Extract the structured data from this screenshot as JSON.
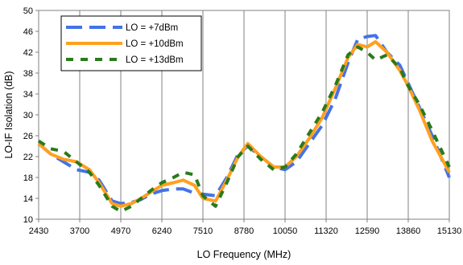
{
  "chart_data": {
    "type": "line",
    "xlabel": "LO Frequency (MHz)",
    "ylabel": "LO-IF Isolation (dB)",
    "xlim": [
      2430,
      15130
    ],
    "ylim": [
      10,
      50
    ],
    "x_ticks": [
      2430,
      3700,
      4970,
      6240,
      7510,
      8780,
      10050,
      11320,
      12590,
      13860,
      15130
    ],
    "y_ticks": [
      10,
      14,
      18,
      22,
      26,
      30,
      34,
      38,
      42,
      46,
      50
    ],
    "grid": "vertical",
    "legend_position": "top-left",
    "series": [
      {
        "name": "LO = +7dBm",
        "color": "#4472e8",
        "dash": "long-dash",
        "x": [
          2430,
          2800,
          3200,
          3600,
          4000,
          4300,
          4700,
          4970,
          5300,
          5600,
          5900,
          6240,
          6600,
          6900,
          7250,
          7510,
          7900,
          8250,
          8600,
          8900,
          9300,
          9700,
          10050,
          10400,
          10800,
          11200,
          11600,
          12000,
          12300,
          12590,
          12850,
          13200,
          13600,
          13860,
          14200,
          14600,
          15130
        ],
        "values": [
          24.5,
          22.5,
          21,
          19.5,
          19,
          17.5,
          13.5,
          13,
          13.2,
          13.8,
          14.8,
          15.5,
          15.8,
          15.8,
          15,
          14.8,
          14.5,
          18,
          22.5,
          24,
          22,
          20,
          19.5,
          21,
          24.5,
          28,
          33,
          40,
          44.5,
          45,
          45.2,
          42,
          39.5,
          36,
          31.5,
          26,
          18
        ]
      },
      {
        "name": "LO = +10dBm",
        "color": "#ffa01e",
        "dash": "solid",
        "x": [
          2430,
          2800,
          3200,
          3600,
          4000,
          4300,
          4700,
          4970,
          5300,
          5600,
          5900,
          6240,
          6600,
          6900,
          7250,
          7510,
          7900,
          8250,
          8600,
          8900,
          9300,
          9700,
          10050,
          10400,
          10800,
          11200,
          11600,
          12000,
          12300,
          12590,
          12850,
          13200,
          13600,
          13860,
          14200,
          14600,
          15130
        ],
        "values": [
          24.5,
          22.5,
          21.5,
          21,
          19.5,
          17,
          13,
          12.5,
          13,
          14,
          15.2,
          16.5,
          17,
          17.5,
          16.5,
          14,
          13.5,
          17.5,
          22,
          24.5,
          22,
          20,
          20,
          22,
          25.5,
          29.5,
          35,
          41,
          43.5,
          43,
          44,
          42,
          38.5,
          35.5,
          31,
          25,
          19
        ]
      },
      {
        "name": "LO = +13dBm",
        "color": "#2a7a1c",
        "dash": "dash",
        "x": [
          2430,
          2800,
          3200,
          3600,
          4000,
          4300,
          4700,
          4970,
          5300,
          5600,
          5900,
          6240,
          6600,
          6900,
          7250,
          7510,
          7900,
          8250,
          8600,
          8900,
          9300,
          9700,
          10050,
          10400,
          10800,
          11200,
          11600,
          12000,
          12300,
          12590,
          12850,
          13200,
          13600,
          13860,
          14200,
          14600,
          15130
        ],
        "values": [
          25,
          23.5,
          23,
          21,
          19,
          16.5,
          12.5,
          11.5,
          12.5,
          14,
          15.5,
          17,
          18,
          19,
          18.5,
          14.5,
          12.5,
          17,
          22,
          24,
          21.5,
          19.5,
          20,
          22.5,
          26.5,
          30.5,
          35.5,
          41.5,
          43,
          42,
          40.5,
          41.5,
          39,
          35.5,
          32,
          27,
          20
        ]
      }
    ]
  }
}
